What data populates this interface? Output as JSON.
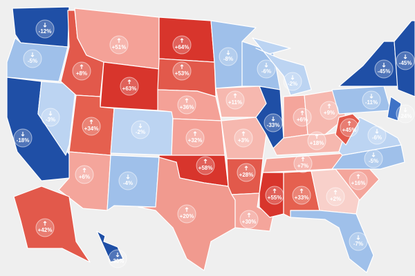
{
  "map": {
    "states": [
      {
        "label": "-12%",
        "color": "#1f4fa6"
      },
      {
        "label": "-5%",
        "color": "#9fc0ea"
      },
      {
        "label": "-18%",
        "color": "#1f4fa6"
      },
      {
        "label": "-3%",
        "color": "#bcd4f2"
      },
      {
        "label": "+8%",
        "color": "#e2594b"
      },
      {
        "label": "+51%",
        "color": "#f4a197"
      },
      {
        "label": "+63%",
        "color": "#d8352c"
      },
      {
        "label": "+34%",
        "color": "#e5604f"
      },
      {
        "label": "-2%",
        "color": "#bcd4f2"
      },
      {
        "label": "+6%",
        "color": "#f4a59b"
      },
      {
        "label": "-4%",
        "color": "#9fc0ea"
      },
      {
        "label": "+64%",
        "color": "#d8352c"
      },
      {
        "label": "+53%",
        "color": "#e2594b"
      },
      {
        "label": "+36%",
        "color": "#f4a197"
      },
      {
        "label": "+32%",
        "color": "#f4a197"
      },
      {
        "label": "+58%",
        "color": "#d8352c"
      },
      {
        "label": "+20%",
        "color": "#f19a8f"
      },
      {
        "label": "-8%",
        "color": "#9fc0ea"
      },
      {
        "label": "+11%",
        "color": "#f6b8af"
      },
      {
        "label": "+3%",
        "color": "#f6b8af"
      },
      {
        "label": "+28%",
        "color": "#e2594b"
      },
      {
        "label": "+30%",
        "color": "#f4a59b"
      },
      {
        "label": "-6%",
        "color": "#9fc0ea"
      },
      {
        "label": "-33%",
        "color": "#1f4fa6"
      },
      {
        "label": "-2%",
        "color": "#bcd4f2"
      },
      {
        "label": "+6%",
        "color": "#f4a59b"
      },
      {
        "label": "+9%",
        "color": "#f6b8af"
      },
      {
        "label": "+18%",
        "color": "#f6b8af"
      },
      {
        "label": "+7%",
        "color": "#f4a59b"
      },
      {
        "label": "+55%",
        "color": "#d8352c"
      },
      {
        "label": "+33%",
        "color": "#e5604f"
      },
      {
        "label": "+2%",
        "color": "#f8d0ca"
      },
      {
        "label": "-7%",
        "color": "#9fc0ea"
      },
      {
        "label": "+16%",
        "color": "#f4a59b"
      },
      {
        "label": "-5%",
        "color": "#9fc0ea"
      },
      {
        "label": "-6%",
        "color": "#bcd4f2"
      },
      {
        "label": "+45%",
        "color": "#e2594b"
      },
      {
        "label": "-11%",
        "color": "#9fc0ea"
      },
      {
        "label": "-45%",
        "color": "#1f4fa6"
      },
      {
        "label": "-24%",
        "color": "#3e72c6"
      },
      {
        "label": "-45%",
        "color": "#1f4fa6"
      },
      {
        "label": "+42%",
        "color": "#e2594b"
      },
      {
        "label": "-30%",
        "color": "#1f4fa6"
      }
    ]
  }
}
